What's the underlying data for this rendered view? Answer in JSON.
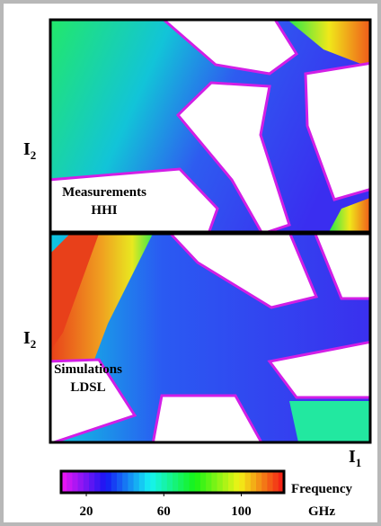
{
  "chart_data": {
    "type": "heatmap",
    "panels": [
      {
        "label": [
          "Measurements",
          "HHI"
        ],
        "ylabel": {
          "main": "I",
          "sub": "2"
        }
      },
      {
        "label": [
          "Simulations",
          "LDSL"
        ],
        "ylabel": {
          "main": "I",
          "sub": "2"
        }
      }
    ],
    "xlabel": {
      "main": "I",
      "sub": "1"
    },
    "colorbar": {
      "title": "Frequency",
      "unit": "GHz",
      "lim": [
        7,
        122
      ],
      "ticks": [
        20,
        60,
        100
      ]
    }
  }
}
